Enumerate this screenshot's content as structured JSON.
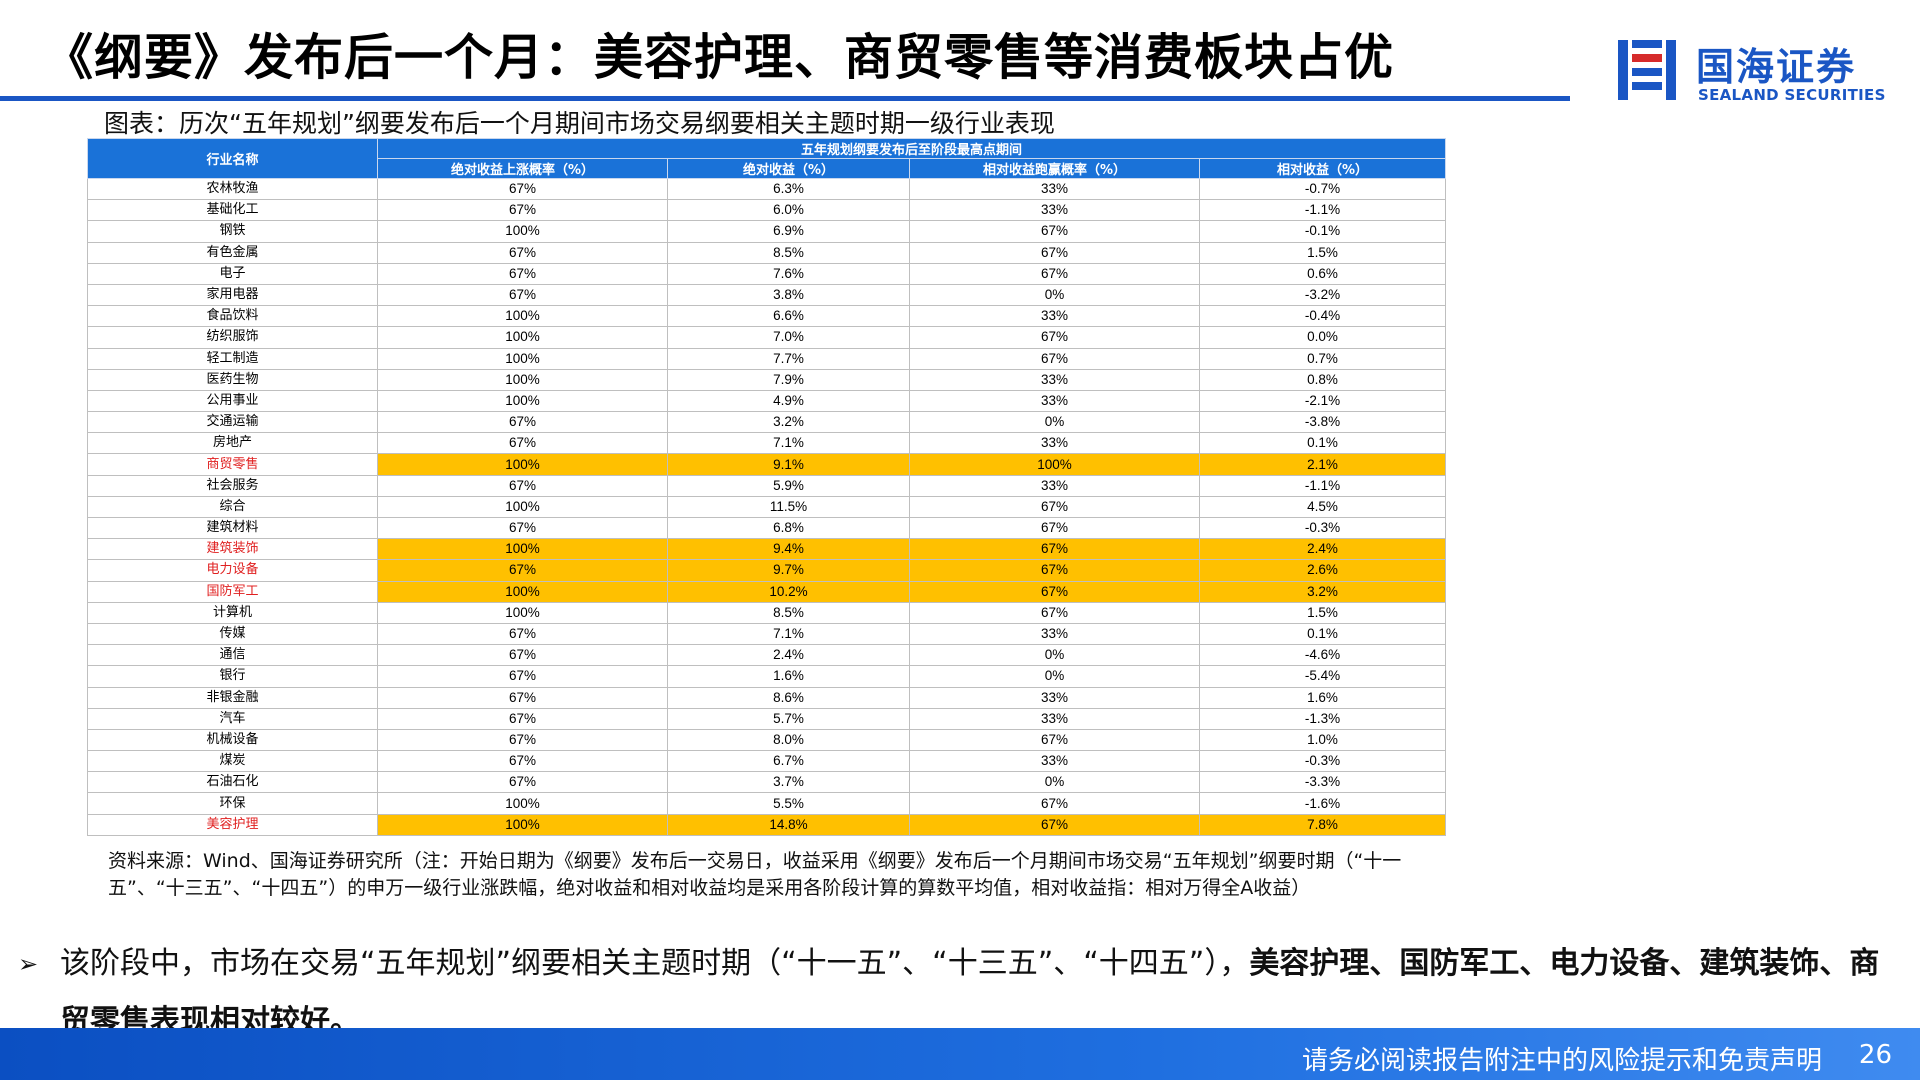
{
  "slide": {
    "title": "《纲要》发布后一个月：美容护理、商贸零售等消费板块占优",
    "figure_caption": "图表：历次“五年规划”纲要发布后一个月期间市场交易纲要相关主题时期一级行业表现",
    "accent_color": "#1a56c4",
    "highlight_color": "#ffc000"
  },
  "logo": {
    "cn": "国海证券",
    "en": "SEALAND SECURITIES"
  },
  "table": {
    "row_header": "行业名称",
    "group_header": "五年规划纲要发布后至阶段最高点期间",
    "columns": [
      "绝对收益上涨概率（%）",
      "绝对收益（%）",
      "相对收益跑赢概率（%）",
      "相对收益（%）"
    ],
    "rows": [
      {
        "name": "农林牧渔",
        "v": [
          "67%",
          "6.3%",
          "33%",
          "-0.7%"
        ],
        "hl": false
      },
      {
        "name": "基础化工",
        "v": [
          "67%",
          "6.0%",
          "33%",
          "-1.1%"
        ],
        "hl": false
      },
      {
        "name": "钢铁",
        "v": [
          "100%",
          "6.9%",
          "67%",
          "-0.1%"
        ],
        "hl": false
      },
      {
        "name": "有色金属",
        "v": [
          "67%",
          "8.5%",
          "67%",
          "1.5%"
        ],
        "hl": false
      },
      {
        "name": "电子",
        "v": [
          "67%",
          "7.6%",
          "67%",
          "0.6%"
        ],
        "hl": false
      },
      {
        "name": "家用电器",
        "v": [
          "67%",
          "3.8%",
          "0%",
          "-3.2%"
        ],
        "hl": false
      },
      {
        "name": "食品饮料",
        "v": [
          "100%",
          "6.6%",
          "33%",
          "-0.4%"
        ],
        "hl": false
      },
      {
        "name": "纺织服饰",
        "v": [
          "100%",
          "7.0%",
          "67%",
          "0.0%"
        ],
        "hl": false
      },
      {
        "name": "轻工制造",
        "v": [
          "100%",
          "7.7%",
          "67%",
          "0.7%"
        ],
        "hl": false
      },
      {
        "name": "医药生物",
        "v": [
          "100%",
          "7.9%",
          "33%",
          "0.8%"
        ],
        "hl": false
      },
      {
        "name": "公用事业",
        "v": [
          "100%",
          "4.9%",
          "33%",
          "-2.1%"
        ],
        "hl": false
      },
      {
        "name": "交通运输",
        "v": [
          "67%",
          "3.2%",
          "0%",
          "-3.8%"
        ],
        "hl": false
      },
      {
        "name": "房地产",
        "v": [
          "67%",
          "7.1%",
          "33%",
          "0.1%"
        ],
        "hl": false
      },
      {
        "name": "商贸零售",
        "v": [
          "100%",
          "9.1%",
          "100%",
          "2.1%"
        ],
        "hl": true
      },
      {
        "name": "社会服务",
        "v": [
          "67%",
          "5.9%",
          "33%",
          "-1.1%"
        ],
        "hl": false
      },
      {
        "name": "综合",
        "v": [
          "100%",
          "11.5%",
          "67%",
          "4.5%"
        ],
        "hl": false
      },
      {
        "name": "建筑材料",
        "v": [
          "67%",
          "6.8%",
          "67%",
          "-0.3%"
        ],
        "hl": false
      },
      {
        "name": "建筑装饰",
        "v": [
          "100%",
          "9.4%",
          "67%",
          "2.4%"
        ],
        "hl": true
      },
      {
        "name": "电力设备",
        "v": [
          "67%",
          "9.7%",
          "67%",
          "2.6%"
        ],
        "hl": true
      },
      {
        "name": "国防军工",
        "v": [
          "100%",
          "10.2%",
          "67%",
          "3.2%"
        ],
        "hl": true
      },
      {
        "name": "计算机",
        "v": [
          "100%",
          "8.5%",
          "67%",
          "1.5%"
        ],
        "hl": false
      },
      {
        "name": "传媒",
        "v": [
          "67%",
          "7.1%",
          "33%",
          "0.1%"
        ],
        "hl": false
      },
      {
        "name": "通信",
        "v": [
          "67%",
          "2.4%",
          "0%",
          "-4.6%"
        ],
        "hl": false
      },
      {
        "name": "银行",
        "v": [
          "67%",
          "1.6%",
          "0%",
          "-5.4%"
        ],
        "hl": false
      },
      {
        "name": "非银金融",
        "v": [
          "67%",
          "8.6%",
          "33%",
          "1.6%"
        ],
        "hl": false
      },
      {
        "name": "汽车",
        "v": [
          "67%",
          "5.7%",
          "33%",
          "-1.3%"
        ],
        "hl": false
      },
      {
        "name": "机械设备",
        "v": [
          "67%",
          "8.0%",
          "67%",
          "1.0%"
        ],
        "hl": false
      },
      {
        "name": "煤炭",
        "v": [
          "67%",
          "6.7%",
          "33%",
          "-0.3%"
        ],
        "hl": false
      },
      {
        "name": "石油石化",
        "v": [
          "67%",
          "3.7%",
          "0%",
          "-3.3%"
        ],
        "hl": false
      },
      {
        "name": "环保",
        "v": [
          "100%",
          "5.5%",
          "67%",
          "-1.6%"
        ],
        "hl": false
      },
      {
        "name": "美容护理",
        "v": [
          "100%",
          "14.8%",
          "67%",
          "7.8%"
        ],
        "hl": true
      }
    ]
  },
  "source_note": "资料来源：Wind、国海证券研究所（注：开始日期为《纲要》发布后一交易日，收益采用《纲要》发布后一个月期间市场交易“五年规划”纲要时期（“十一五”、“十三五”、“十四五”）的申万一级行业涨跌幅，绝对收益和相对收益均是采用各阶段计算的算数平均值，相对收益指：相对万得全A收益）",
  "bullet": {
    "marker": "➢",
    "text_plain": "该阶段中，市场在交易“五年规划”纲要相关主题时期（“十一五”、“十三五”、“十四五”），",
    "text_bold": "美容护理、国防军工、电力设备、建筑装饰、商贸零售表现相对较好。"
  },
  "footer": {
    "disclaimer": "请务必阅读报告附注中的风险提示和免责声明",
    "page_number": "26"
  }
}
